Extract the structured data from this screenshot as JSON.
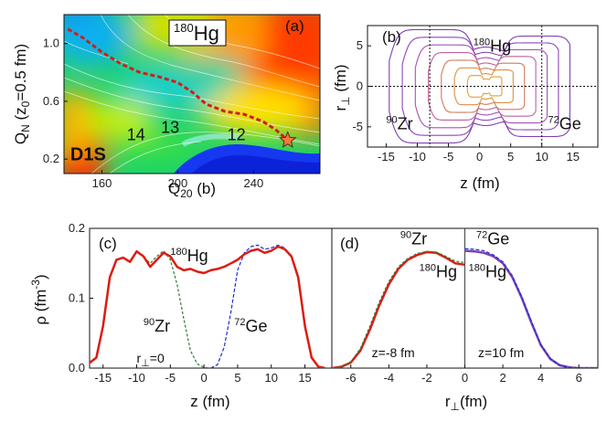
{
  "chart_data": [
    {
      "id": "a",
      "type": "heatmap",
      "panel_label": "(a)",
      "title_pre": "180",
      "title_main": "Hg",
      "xlabel": "Q",
      "xlabel_sub": "20",
      "xlabel_post": " (b)",
      "ylabel": "Q",
      "ylabel_sub": "N",
      "ylabel_post": " (z",
      "ylabel_sub2": "0",
      "ylabel_post2": "=0.5 fm)",
      "xlim": [
        140,
        275
      ],
      "ylim": [
        0.1,
        1.2
      ],
      "xticks": [
        160,
        200,
        240
      ],
      "yticks": [
        0.2,
        0.6,
        1.0
      ],
      "annotations": [
        {
          "text": "D1S",
          "x": 152,
          "y": 0.23
        },
        {
          "text": "14",
          "x": 177,
          "y": 0.37
        },
        {
          "text": "13",
          "x": 195,
          "y": 0.42
        },
        {
          "text": "12",
          "x": 230,
          "y": 0.37
        }
      ],
      "path": {
        "x": [
          142,
          150,
          160,
          170,
          180,
          190,
          200,
          208,
          215,
          225,
          235,
          245,
          252,
          258
        ],
        "y": [
          1.1,
          1.04,
          0.94,
          0.86,
          0.8,
          0.77,
          0.73,
          0.66,
          0.58,
          0.53,
          0.51,
          0.46,
          0.4,
          0.33
        ]
      },
      "star": {
        "x": 258,
        "y": 0.33
      }
    },
    {
      "id": "b",
      "type": "line",
      "panel_label": "(b)",
      "xlabel": "z (fm)",
      "ylabel": "r",
      "ylabel_sub": "⊥",
      "ylabel_post": " (fm)",
      "xlim": [
        -18,
        19
      ],
      "ylim": [
        -7.5,
        7.5
      ],
      "xticks": [
        -15,
        -10,
        -5,
        0,
        5,
        10,
        15
      ],
      "yticks": [
        -5,
        0,
        5
      ],
      "labels": [
        {
          "pre": "180",
          "main": "Hg",
          "x": -1,
          "y": 4.3
        },
        {
          "pre": "90",
          "main": "Zr",
          "x": -15,
          "y": -5.3
        },
        {
          "pre": "72",
          "main": "Ge",
          "x": 11,
          "y": -5.3
        }
      ],
      "vlines": [
        -8,
        10
      ],
      "hline": 0
    },
    {
      "id": "c",
      "type": "line",
      "panel_label": "(c)",
      "xlabel": "z (fm)",
      "ylabel": "ρ (fm",
      "ylabel_sup": "-3",
      "ylabel_post": ")",
      "xlim": [
        -17,
        19
      ],
      "ylim": [
        0,
        0.2
      ],
      "xticks": [
        -15,
        -10,
        -5,
        0,
        5,
        10,
        15
      ],
      "yticks": [
        0.0,
        0.1,
        0.2
      ],
      "annotations": [
        {
          "pre": "180",
          "main": "Hg",
          "x": -5,
          "y": 0.153
        },
        {
          "pre": "90",
          "main": "Zr",
          "x": -9,
          "y": 0.052
        },
        {
          "pre": "72",
          "main": "Ge",
          "x": 4.5,
          "y": 0.052
        },
        {
          "main": "r",
          "sub": "⊥",
          "post": "=0",
          "x": -10,
          "y": 0.008
        }
      ],
      "series": [
        {
          "name": "180Hg",
          "x": [
            -18,
            -16,
            -15,
            -14,
            -13,
            -12,
            -11,
            -10,
            -9,
            -8,
            -7,
            -6,
            -5,
            -4,
            -3,
            -2,
            -1,
            0,
            1,
            2,
            3,
            4,
            5,
            6,
            7,
            8,
            9,
            10,
            11,
            12,
            13,
            14,
            15,
            16,
            17,
            18
          ],
          "y": [
            0.0,
            0.015,
            0.06,
            0.13,
            0.155,
            0.158,
            0.152,
            0.167,
            0.16,
            0.145,
            0.155,
            0.165,
            0.16,
            0.145,
            0.14,
            0.142,
            0.138,
            0.136,
            0.14,
            0.142,
            0.145,
            0.15,
            0.155,
            0.163,
            0.168,
            0.17,
            0.165,
            0.168,
            0.174,
            0.17,
            0.16,
            0.13,
            0.06,
            0.015,
            0.002,
            0.0
          ]
        },
        {
          "name": "90Zr",
          "x": [
            -18,
            -16,
            -15,
            -14,
            -13,
            -12,
            -11,
            -10,
            -9,
            -8,
            -7,
            -6,
            -5,
            -4,
            -3,
            -2,
            -1,
            0,
            1
          ],
          "y": [
            0.0,
            0.015,
            0.06,
            0.13,
            0.155,
            0.158,
            0.152,
            0.168,
            0.16,
            0.15,
            0.16,
            0.168,
            0.155,
            0.12,
            0.07,
            0.025,
            0.006,
            0.001,
            0.0
          ]
        },
        {
          "name": "72Ge",
          "x": [
            1,
            2,
            3,
            4,
            5,
            6,
            7,
            8,
            9,
            10,
            11,
            12,
            13,
            14,
            15,
            16,
            17,
            18
          ],
          "y": [
            0.0,
            0.005,
            0.03,
            0.08,
            0.14,
            0.165,
            0.174,
            0.176,
            0.17,
            0.172,
            0.176,
            0.172,
            0.16,
            0.13,
            0.06,
            0.015,
            0.002,
            0.0
          ]
        }
      ]
    },
    {
      "id": "d",
      "type": "line",
      "panel_label": "(d)",
      "xlabel": "r",
      "xlabel_sub": "⊥",
      "xlabel_post": "(fm)",
      "xlim": [
        -7,
        7
      ],
      "ylim": [
        0,
        0.2
      ],
      "xticks": [
        -6,
        -4,
        -2,
        0,
        2,
        4,
        6
      ],
      "annotations": [
        {
          "pre": "90",
          "main": "Zr",
          "x": -3.4,
          "y": 0.177
        },
        {
          "pre": "180",
          "main": "Hg",
          "x": -2.4,
          "y": 0.13
        },
        {
          "pre": "72",
          "main": "Ge",
          "x": 0.6,
          "y": 0.177
        },
        {
          "pre": "180",
          "main": "Hg",
          "x": 0.2,
          "y": 0.13
        },
        {
          "text": "z=-8 fm",
          "x": -4.9,
          "y": 0.016
        },
        {
          "text": "z=10 fm",
          "x": 0.7,
          "y": 0.016
        }
      ],
      "vline": 0,
      "series": [
        {
          "name": "180Hg (z=-8 fm)",
          "x": [
            -7,
            -6.5,
            -6,
            -5.5,
            -5,
            -4.5,
            -4,
            -3.5,
            -3,
            -2.5,
            -2,
            -1.5,
            -1,
            -0.5,
            0
          ],
          "y": [
            0.0,
            0.002,
            0.008,
            0.025,
            0.055,
            0.09,
            0.12,
            0.142,
            0.155,
            0.162,
            0.166,
            0.165,
            0.158,
            0.15,
            0.148
          ]
        },
        {
          "name": "90Zr (z=-8 fm)",
          "x": [
            -7,
            -6.5,
            -6,
            -5.5,
            -5,
            -4.5,
            -4,
            -3.5,
            -3,
            -2.5,
            -2,
            -1.5,
            -1,
            -0.5,
            0
          ],
          "y": [
            0.0,
            0.002,
            0.009,
            0.028,
            0.06,
            0.095,
            0.124,
            0.145,
            0.157,
            0.164,
            0.167,
            0.166,
            0.16,
            0.153,
            0.151
          ]
        },
        {
          "name": "180Hg (z=10 fm)",
          "x": [
            0,
            0.5,
            1,
            1.5,
            2,
            2.5,
            3,
            3.5,
            4,
            4.5,
            5,
            5.5,
            6,
            6.5,
            7
          ],
          "y": [
            0.168,
            0.167,
            0.165,
            0.16,
            0.15,
            0.13,
            0.1,
            0.065,
            0.033,
            0.013,
            0.004,
            0.001,
            0.0,
            0.0,
            0.0
          ]
        },
        {
          "name": "72Ge (z=10 fm)",
          "x": [
            0,
            0.5,
            1,
            1.5,
            2,
            2.5,
            3,
            3.5,
            4,
            4.5,
            5,
            5.5,
            6,
            6.5,
            7
          ],
          "y": [
            0.171,
            0.17,
            0.168,
            0.162,
            0.152,
            0.132,
            0.102,
            0.067,
            0.034,
            0.014,
            0.004,
            0.001,
            0.0,
            0.0,
            0.0
          ]
        }
      ]
    }
  ],
  "colors": {
    "hg": "#dd1b12",
    "zr": "#2e7d32",
    "ge": "#1a2fd6",
    "dpanel_hg_right": "#7b3fb3",
    "path": "#d11d1d",
    "star": "#f47a3c"
  }
}
